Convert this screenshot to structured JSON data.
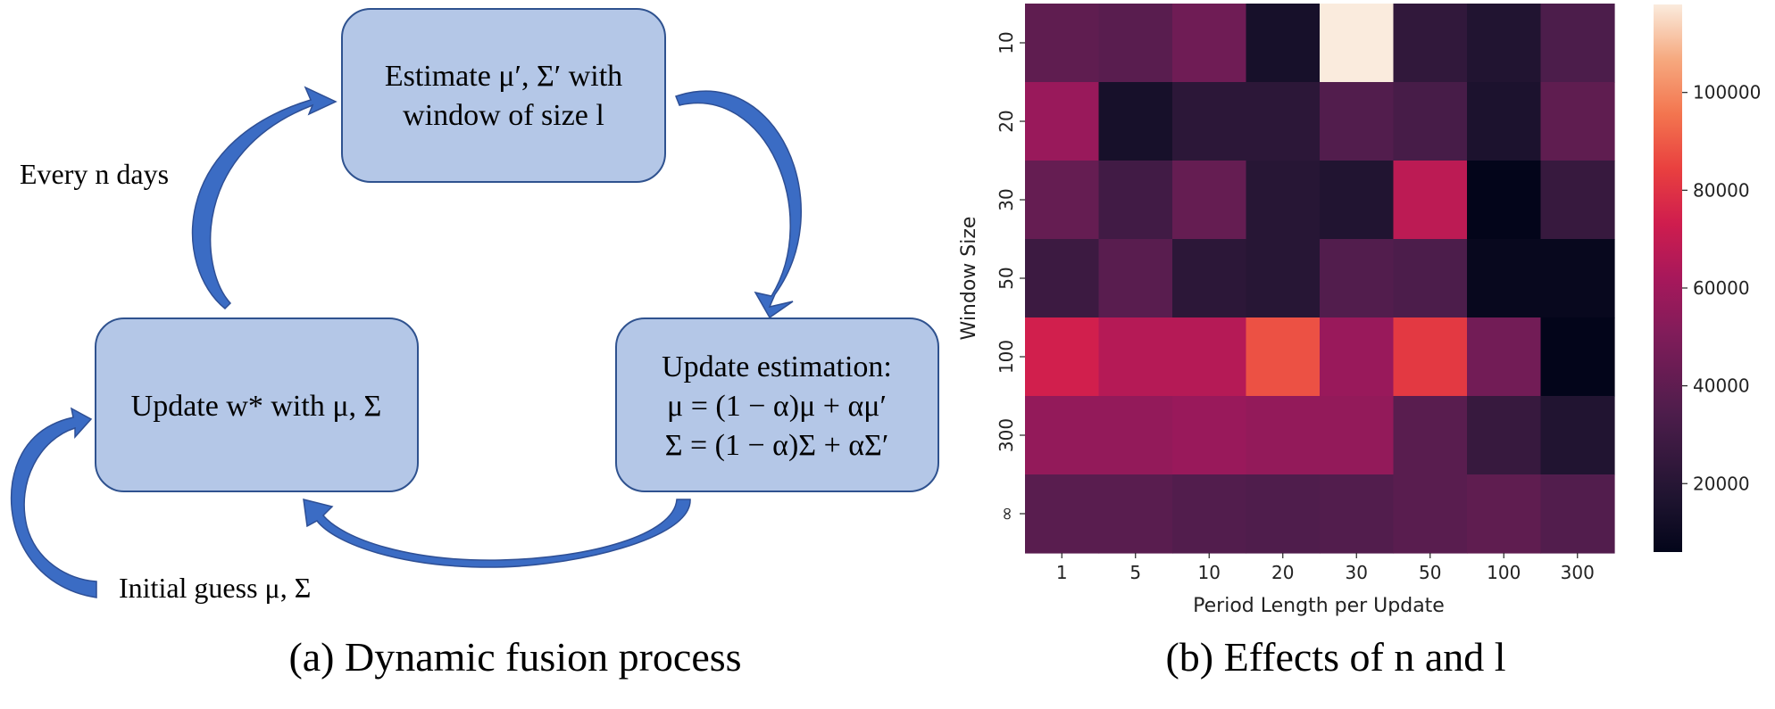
{
  "panel_a": {
    "boxes": {
      "estimate": {
        "line1": "Estimate μ′, Σ′ with",
        "line2": "window of size l"
      },
      "update_w": {
        "line1": "Update w* with μ, Σ"
      },
      "update_est": {
        "line1": "Update estimation:",
        "line2": "μ = (1 − α)μ + αμ′",
        "line3": "Σ = (1 − α)Σ + αΣ′"
      }
    },
    "every_label": "Every n days",
    "initial_label": "Initial guess μ, Σ",
    "caption": "(a) Dynamic fusion process",
    "colors": {
      "box_fill": "#b4c7e7",
      "box_stroke": "#2f528f",
      "arrow": "#3b6cc4",
      "arrow_dark": "#2e4f95"
    }
  },
  "panel_b": {
    "caption": "(b) Effects of n and l"
  },
  "chart_data": {
    "type": "heatmap",
    "xlabel": "Period Length per Update",
    "ylabel": "Window Size",
    "x_categories": [
      "1",
      "5",
      "10",
      "20",
      "30",
      "50",
      "100",
      "300"
    ],
    "y_categories": [
      "10",
      "20",
      "30",
      "50",
      "100",
      "300",
      "∞"
    ],
    "values": [
      [
        40000,
        38000,
        45000,
        14000,
        118000,
        24000,
        18000,
        34000
      ],
      [
        58000,
        14000,
        22000,
        22000,
        36000,
        32000,
        16000,
        40000
      ],
      [
        42000,
        30000,
        42000,
        20000,
        18000,
        68000,
        6000,
        26000
      ],
      [
        28000,
        38000,
        22000,
        20000,
        36000,
        34000,
        8000,
        8000
      ],
      [
        74000,
        66000,
        66000,
        88000,
        58000,
        82000,
        46000,
        6000
      ],
      [
        56000,
        56000,
        58000,
        56000,
        56000,
        38000,
        26000,
        18000
      ],
      [
        38000,
        38000,
        36000,
        35000,
        36000,
        38000,
        40000,
        36000
      ]
    ],
    "colorbar": {
      "min": 6000,
      "max": 118000,
      "ticks": [
        20000,
        40000,
        60000,
        80000,
        100000
      ]
    },
    "colormap": "rocket"
  }
}
